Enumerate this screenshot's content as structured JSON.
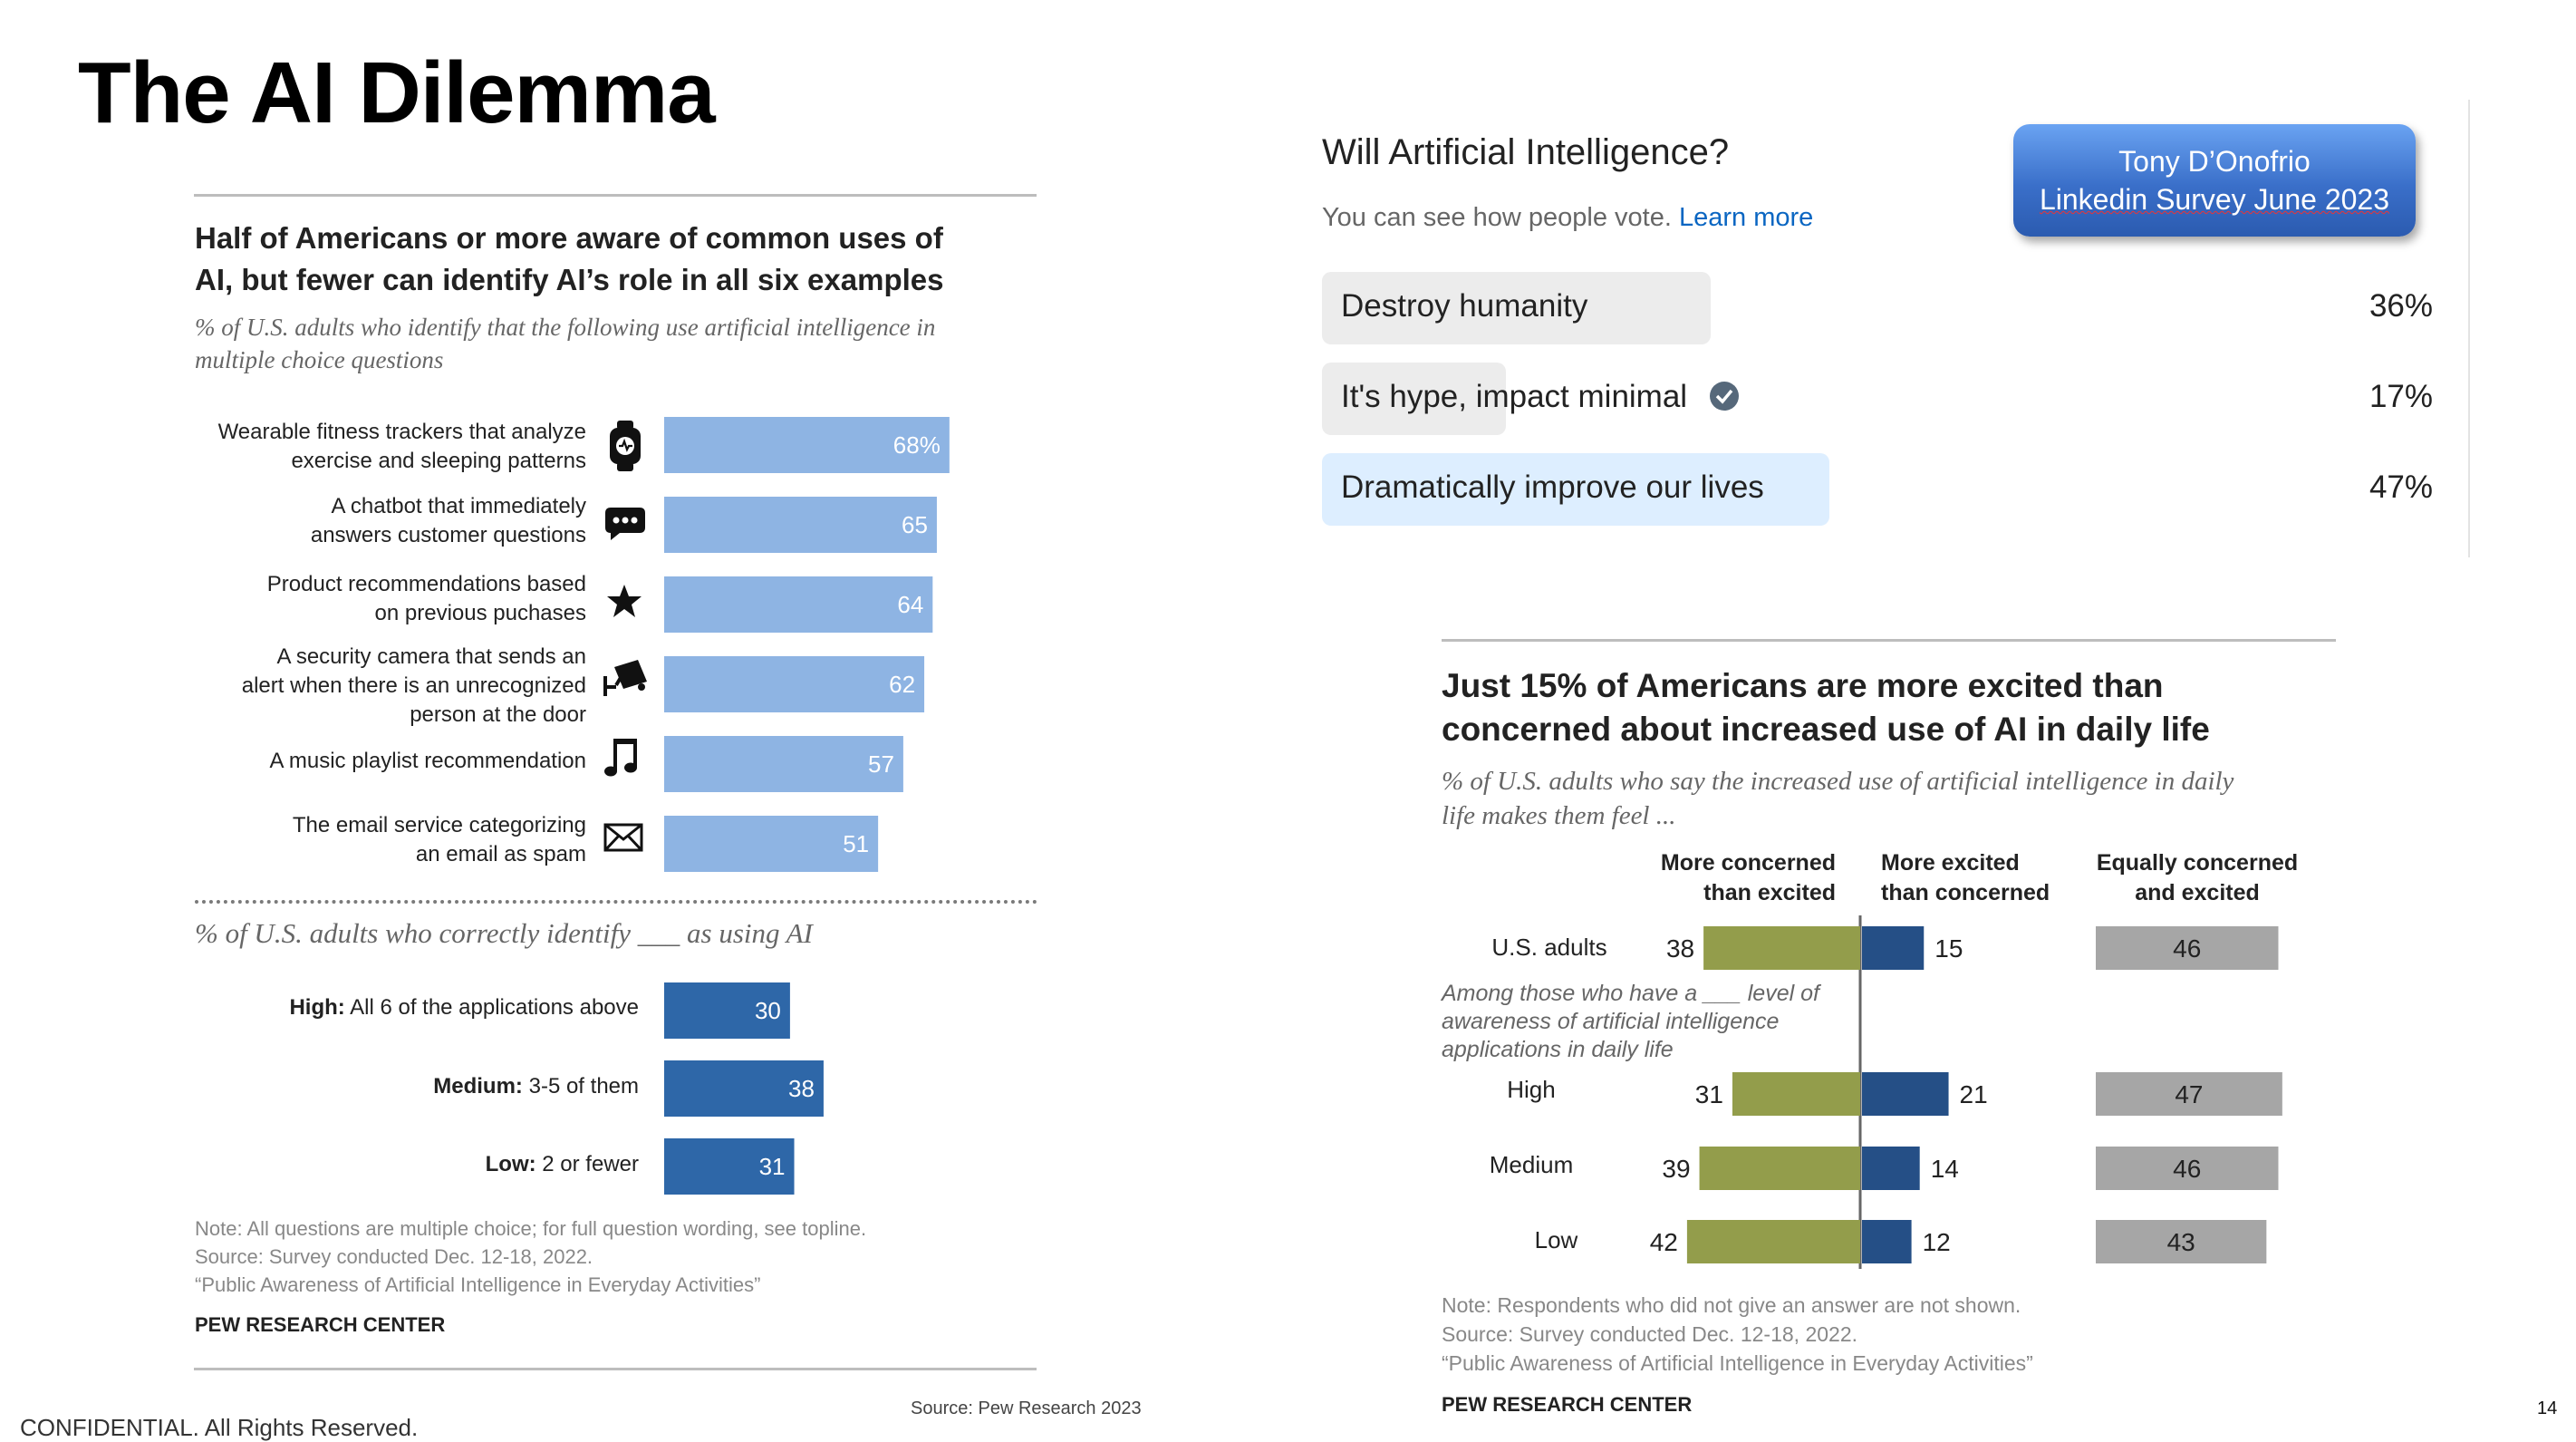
{
  "slide": {
    "title": "The AI Dilemma",
    "footer_left": "CONFIDENTIAL. All Rights Reserved.",
    "source": "Source: Pew Research 2023",
    "page_number": "14"
  },
  "poll": {
    "question": "Will Artificial Intelligence?",
    "hint": "You can see how people vote.",
    "hint_link": "Learn more",
    "badge_line1": "Tony D’Onofrio",
    "badge_line2": "Linkedin Survey June 2023",
    "options": [
      {
        "label": "Destroy humanity",
        "pct": "36%",
        "value": 36,
        "fill": "#ececec"
      },
      {
        "label": "It's hype, impact minimal",
        "pct": "17%",
        "value": 17,
        "fill": "#ececec",
        "voted": true
      },
      {
        "label": "Dramatically improve our lives",
        "pct": "47%",
        "value": 47,
        "fill": "#ddeeff"
      }
    ]
  },
  "chart_data": [
    {
      "type": "bar",
      "title_line1": "Half of Americans or more aware of common uses of",
      "title_line2": "AI, but fewer can identify AI’s role in all six examples",
      "subtitle_line1": "% of U.S. adults who identify that the following use artificial intelligence in",
      "subtitle_line2": "multiple choice questions",
      "categories": [
        [
          "Wearable fitness trackers that analyze",
          "exercise and sleeping patterns"
        ],
        [
          "A chatbot that immediately",
          "answers customer questions"
        ],
        [
          "Product recommendations based",
          "on previous puchases"
        ],
        [
          "A security camera that sends an",
          "alert when there is an unrecognized",
          "person at the door"
        ],
        [
          "A music playlist recommendation"
        ],
        [
          "The email service categorizing",
          "an email as spam"
        ]
      ],
      "icons": [
        "watch-icon",
        "chat-bubble-icon",
        "star-icon",
        "security-camera-icon",
        "music-note-icon",
        "envelope-icon"
      ],
      "values": [
        68,
        65,
        64,
        62,
        57,
        51
      ],
      "value_labels": [
        "68%",
        "65",
        "64",
        "62",
        "57",
        "51"
      ],
      "color": "#8eb4e3",
      "subtitle2": "% of U.S. adults who correctly identify ___ as using AI",
      "categories2": [
        {
          "bold": "High:",
          "rest": " All 6 of the applications above"
        },
        {
          "bold": "Medium:",
          "rest": " 3-5 of them"
        },
        {
          "bold": "Low:",
          "rest": " 2 or fewer"
        }
      ],
      "values2": [
        30,
        38,
        31
      ],
      "color2": "#2e67a8",
      "notes": [
        "Note: All questions are multiple choice; for full question wording, see topline.",
        "Source: Survey conducted Dec. 12-18, 2022.",
        "“Public Awareness of Artificial Intelligence in Everyday Activities”"
      ],
      "credit": "PEW RESEARCH CENTER"
    },
    {
      "type": "bar",
      "title_line1": "Just 15% of Americans are more excited than",
      "title_line2": "concerned about increased use of AI in daily life",
      "subtitle_line1": "% of U.S. adults who say the increased use of artificial intelligence in daily",
      "subtitle_line2": "life makes them feel ...",
      "column_headers": [
        [
          "More concerned",
          "than excited"
        ],
        [
          "More excited",
          "than concerned"
        ],
        [
          "Equally concerned",
          "and excited"
        ]
      ],
      "categories": [
        "U.S. adults",
        "High",
        "Medium",
        "Low"
      ],
      "group_note": [
        "Among those who have a ___ level of",
        "awareness of artificial intelligence",
        "applications in daily life"
      ],
      "series": [
        {
          "name": "More concerned than excited",
          "values": [
            38,
            31,
            39,
            42
          ],
          "color": "#939d4b"
        },
        {
          "name": "More excited than concerned",
          "values": [
            15,
            21,
            14,
            12
          ],
          "color": "#254f86"
        },
        {
          "name": "Equally concerned and excited",
          "values": [
            46,
            47,
            46,
            43
          ],
          "color": "#a6a6a6"
        }
      ],
      "notes": [
        "Note: Respondents who did not give an answer are not shown.",
        "Source: Survey conducted Dec. 12-18, 2022.",
        "“Public Awareness of Artificial Intelligence in Everyday Activities”"
      ],
      "credit": "PEW RESEARCH CENTER"
    }
  ]
}
